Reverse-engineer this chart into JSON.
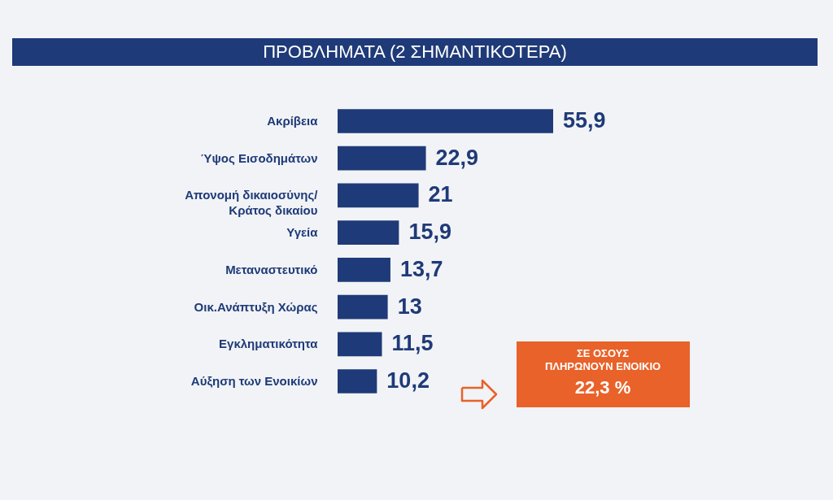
{
  "chart_data": {
    "type": "bar",
    "orientation": "horizontal",
    "title": "ΠΡΟΒΛΗΜΑΤΑ (2 ΣΗΜΑΝΤΙΚΟΤΕΡΑ)",
    "categories": [
      "Ακρίβεια",
      "Ύψος Εισοδημάτων",
      "Απονομή δικαιοσύνης/\nΚράτος δικαίου",
      "Υγεία",
      "Μεταναστευτικό",
      "Οικ.Ανάπτυξη Χώρας",
      "Εγκληματικότητα",
      "Αύξηση των Ενοικίων"
    ],
    "values": [
      55.9,
      22.9,
      21,
      15.9,
      13.7,
      13,
      11.5,
      10.2
    ],
    "value_labels": [
      "55,9",
      "22,9",
      "21",
      "15,9",
      "13,7",
      "13",
      "11,5",
      "10,2"
    ],
    "color": "#1f3a78",
    "annotations": [
      "ΣΕ ΟΣΟΥΣ\nΠΛΗΡΩΝΟΥΝ ΕΝΟΙΚΙΟ\n22,3 %"
    ]
  }
}
